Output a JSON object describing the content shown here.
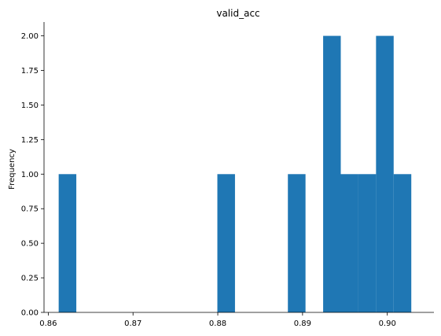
{
  "chart_data": {
    "type": "bar",
    "title": "valid_acc",
    "xlabel": "",
    "ylabel": "Frequency",
    "xlim": [
      0.8595,
      0.9055
    ],
    "ylim": [
      0,
      2.1
    ],
    "grid": false,
    "legend": "none",
    "bar_color": "#1f77b4",
    "bin_width": 0.00208,
    "bins": [
      {
        "left": 0.86123,
        "value": 1
      },
      {
        "left": 0.86331,
        "value": 0
      },
      {
        "left": 0.86539,
        "value": 0
      },
      {
        "left": 0.86747,
        "value": 0
      },
      {
        "left": 0.86955,
        "value": 0
      },
      {
        "left": 0.87163,
        "value": 0
      },
      {
        "left": 0.87371,
        "value": 0
      },
      {
        "left": 0.87579,
        "value": 0
      },
      {
        "left": 0.87787,
        "value": 0
      },
      {
        "left": 0.87995,
        "value": 1
      },
      {
        "left": 0.88203,
        "value": 0
      },
      {
        "left": 0.88411,
        "value": 0
      },
      {
        "left": 0.88619,
        "value": 0
      },
      {
        "left": 0.88827,
        "value": 1
      },
      {
        "left": 0.89035,
        "value": 0
      },
      {
        "left": 0.89243,
        "value": 2
      },
      {
        "left": 0.89451,
        "value": 1
      },
      {
        "left": 0.89659,
        "value": 1
      },
      {
        "left": 0.89867,
        "value": 2
      },
      {
        "left": 0.90075,
        "value": 1
      }
    ],
    "x_ticks": [
      {
        "value": 0.86,
        "label": "0.86"
      },
      {
        "value": 0.87,
        "label": "0.87"
      },
      {
        "value": 0.88,
        "label": "0.88"
      },
      {
        "value": 0.89,
        "label": "0.89"
      },
      {
        "value": 0.9,
        "label": "0.90"
      }
    ],
    "y_ticks": [
      {
        "value": 0.0,
        "label": "0.00"
      },
      {
        "value": 0.25,
        "label": "0.25"
      },
      {
        "value": 0.5,
        "label": "0.50"
      },
      {
        "value": 0.75,
        "label": "0.75"
      },
      {
        "value": 1.0,
        "label": "1.00"
      },
      {
        "value": 1.25,
        "label": "1.25"
      },
      {
        "value": 1.5,
        "label": "1.50"
      },
      {
        "value": 1.75,
        "label": "1.75"
      },
      {
        "value": 2.0,
        "label": "2.00"
      }
    ]
  }
}
